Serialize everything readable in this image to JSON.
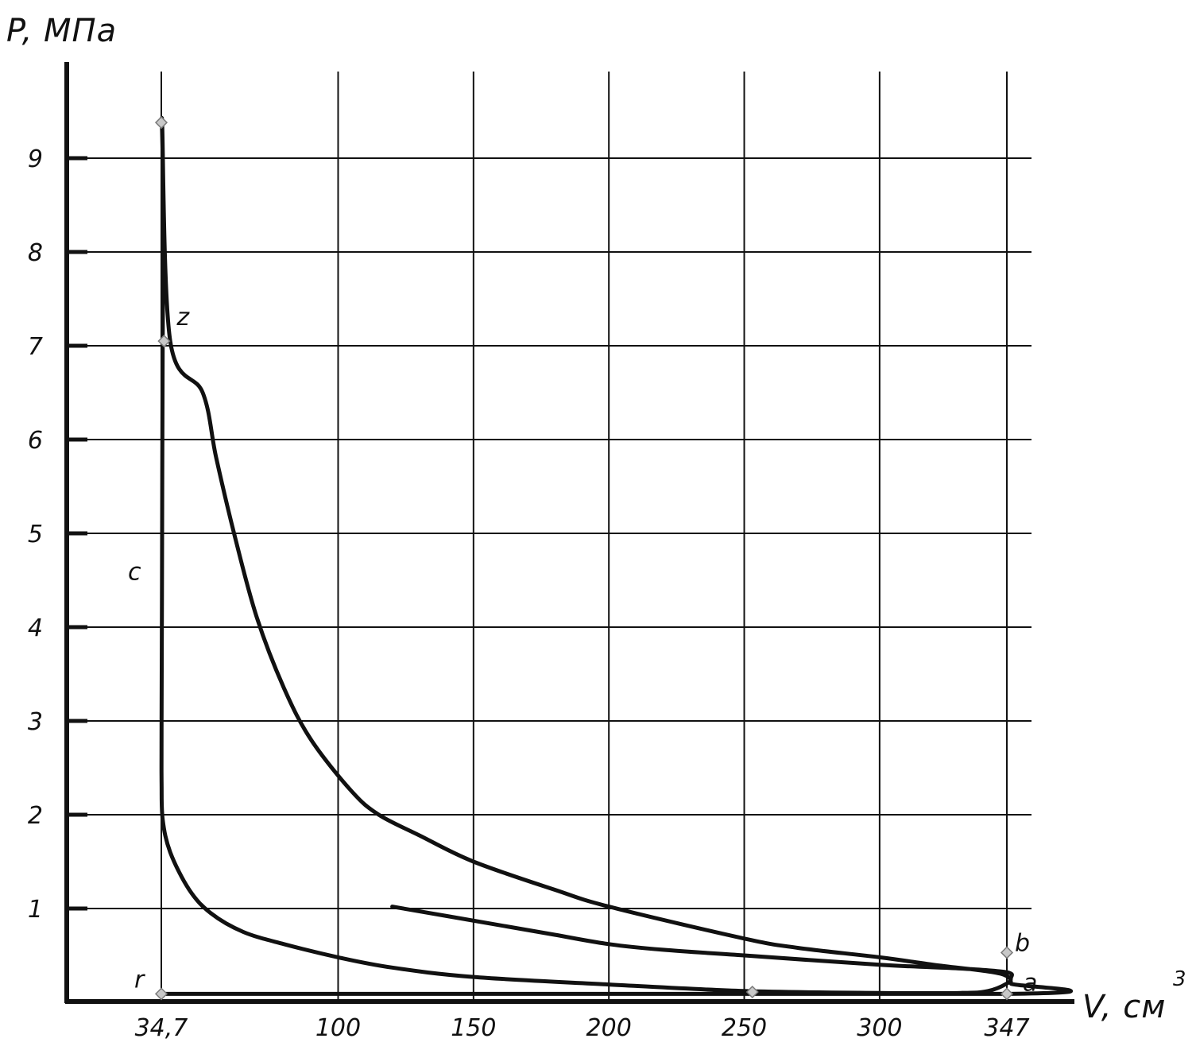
{
  "chart_data": {
    "type": "line",
    "y_axis_title": "P, МПа",
    "x_axis_title": "V, см",
    "x_axis_unit_superscript": "3",
    "xlim": [
      0,
      400
    ],
    "ylim": [
      0,
      9.8
    ],
    "x_ticks": [
      {
        "value": 34.7,
        "label": "34,7"
      },
      {
        "value": 100,
        "label": "100"
      },
      {
        "value": 150,
        "label": "150"
      },
      {
        "value": 200,
        "label": "200"
      },
      {
        "value": 250,
        "label": "250"
      },
      {
        "value": 300,
        "label": "300"
      },
      {
        "value": 347,
        "label": "347"
      }
    ],
    "y_ticks": [
      {
        "value": 1,
        "label": "1"
      },
      {
        "value": 2,
        "label": "2"
      },
      {
        "value": 3,
        "label": "3"
      },
      {
        "value": 4,
        "label": "4"
      },
      {
        "value": 5,
        "label": "5"
      },
      {
        "value": 6,
        "label": "6"
      },
      {
        "value": 7,
        "label": "7"
      },
      {
        "value": 8,
        "label": "8"
      },
      {
        "value": 9,
        "label": "9"
      }
    ],
    "grid": true,
    "series": [
      {
        "values": [
          [
            34.7,
            0.09
          ],
          [
            347,
            0.09
          ],
          [
            348.5,
            0.2
          ],
          [
            347,
            0.28
          ],
          [
            340,
            0.33
          ],
          [
            320,
            0.4
          ],
          [
            300,
            0.48
          ],
          [
            270,
            0.58
          ],
          [
            250,
            0.68
          ],
          [
            200,
            1.02
          ],
          [
            180,
            1.2
          ],
          [
            150,
            1.5
          ],
          [
            130,
            1.78
          ],
          [
            115,
            2.0
          ],
          [
            105,
            2.25
          ],
          [
            90,
            2.8
          ],
          [
            80,
            3.35
          ],
          [
            70,
            4.1
          ],
          [
            62,
            4.95
          ],
          [
            55,
            5.8
          ],
          [
            50,
            6.5
          ],
          [
            38,
            7.05
          ],
          [
            35,
            9.38
          ],
          [
            35.5,
            8.5
          ],
          [
            35.2,
            7.0
          ],
          [
            35.0,
            5.0
          ],
          [
            34.8,
            3.0
          ],
          [
            34.8,
            2.35
          ],
          [
            35.2,
            1.95
          ],
          [
            38,
            1.6
          ],
          [
            45,
            1.2
          ],
          [
            53,
            0.95
          ],
          [
            65,
            0.75
          ],
          [
            80,
            0.62
          ],
          [
            100,
            0.48
          ],
          [
            120,
            0.37
          ],
          [
            150,
            0.27
          ],
          [
            200,
            0.19
          ],
          [
            250,
            0.12
          ],
          [
            300,
            0.1
          ],
          [
            330,
            0.1
          ],
          [
            340,
            0.12
          ],
          [
            347,
            0.2
          ],
          [
            348.5,
            0.26
          ],
          [
            347,
            0.32
          ],
          [
            330,
            0.36
          ],
          [
            300,
            0.4
          ],
          [
            250,
            0.5
          ],
          [
            220,
            0.56
          ],
          [
            200,
            0.62
          ],
          [
            180,
            0.72
          ],
          [
            160,
            0.82
          ],
          [
            140,
            0.92
          ],
          [
            120,
            1.02
          ]
        ]
      }
    ],
    "points": [
      {
        "name": "r",
        "x": 34.7,
        "y": 0.09
      },
      {
        "name": "a",
        "x": 347,
        "y": 0.09
      },
      {
        "name": "c",
        "x": 34.7,
        "y": 2.35
      },
      {
        "name": "z",
        "x": 35.7,
        "y": 7.05
      },
      {
        "name": "b",
        "x": 347,
        "y": 0.53
      }
    ],
    "markers": [
      {
        "x": 34.7,
        "y": 9.38
      },
      {
        "x": 35.7,
        "y": 7.05
      },
      {
        "x": 253,
        "y": 0.11
      },
      {
        "x": 347,
        "y": 0.53
      },
      {
        "x": 347,
        "y": 0.09
      },
      {
        "x": 34.7,
        "y": 0.09
      }
    ],
    "colors": {
      "line": "#111111",
      "marker_fill": "#c8c8c8",
      "marker_stroke": "#7a7a7a"
    }
  }
}
